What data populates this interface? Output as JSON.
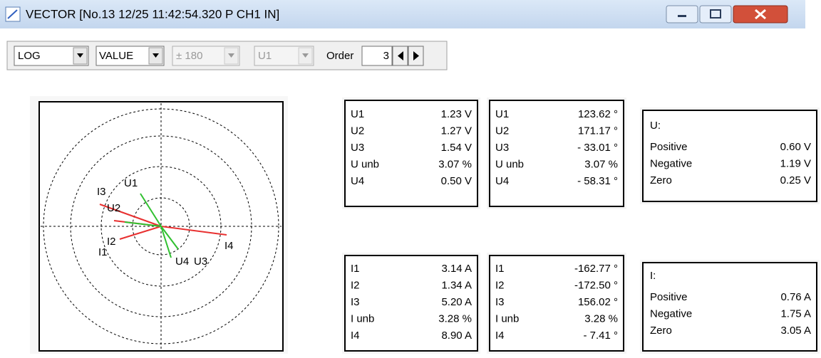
{
  "title_bar": {
    "title": "VECTOR [No.13 12/25 11:42:54.320  P  CH1  IN]"
  },
  "toolbar": {
    "display_mode": "LOG",
    "value_mode": "VALUE",
    "angle_range": "± 180",
    "reference": "U1",
    "order_label": "Order",
    "order": "3"
  },
  "vector_diagram": {
    "labels": [
      "U1",
      "U2",
      "U3",
      "U4",
      "I1",
      "I2",
      "I3",
      "I4"
    ]
  },
  "voltage": {
    "magnitudes": [
      [
        "U1",
        "1.23 V"
      ],
      [
        "U2",
        "1.27 V"
      ],
      [
        "U3",
        "1.54 V"
      ],
      [
        "U unb",
        "3.07 %"
      ],
      [
        "U4",
        "0.50 V"
      ]
    ],
    "phases": [
      [
        "U1",
        "123.62 °"
      ],
      [
        "U2",
        "171.17 °"
      ],
      [
        "U3",
        "- 33.01 °"
      ],
      [
        "U unb",
        "3.07 %"
      ],
      [
        "U4",
        "- 58.31 °"
      ]
    ],
    "sequence": {
      "title": "U:",
      "rows": [
        [
          "Positive",
          "0.60 V"
        ],
        [
          "Negative",
          "1.19 V"
        ],
        [
          "Zero",
          "0.25 V"
        ]
      ]
    }
  },
  "current": {
    "magnitudes": [
      [
        "I1",
        "3.14 A"
      ],
      [
        "I2",
        "1.34 A"
      ],
      [
        "I3",
        "5.20 A"
      ],
      [
        "I unb",
        "3.28 %"
      ],
      [
        "I4",
        "8.90 A"
      ]
    ],
    "phases": [
      [
        "I1",
        "-162.77 °"
      ],
      [
        "I2",
        "-172.50 °"
      ],
      [
        "I3",
        "156.02 °"
      ],
      [
        "I unb",
        "3.28 %"
      ],
      [
        "I4",
        "- 7.41 °"
      ]
    ],
    "sequence": {
      "title": "I:",
      "rows": [
        [
          "Positive",
          "0.76 A"
        ],
        [
          "Negative",
          "1.75 A"
        ],
        [
          "Zero",
          "3.05 A"
        ]
      ]
    }
  }
}
